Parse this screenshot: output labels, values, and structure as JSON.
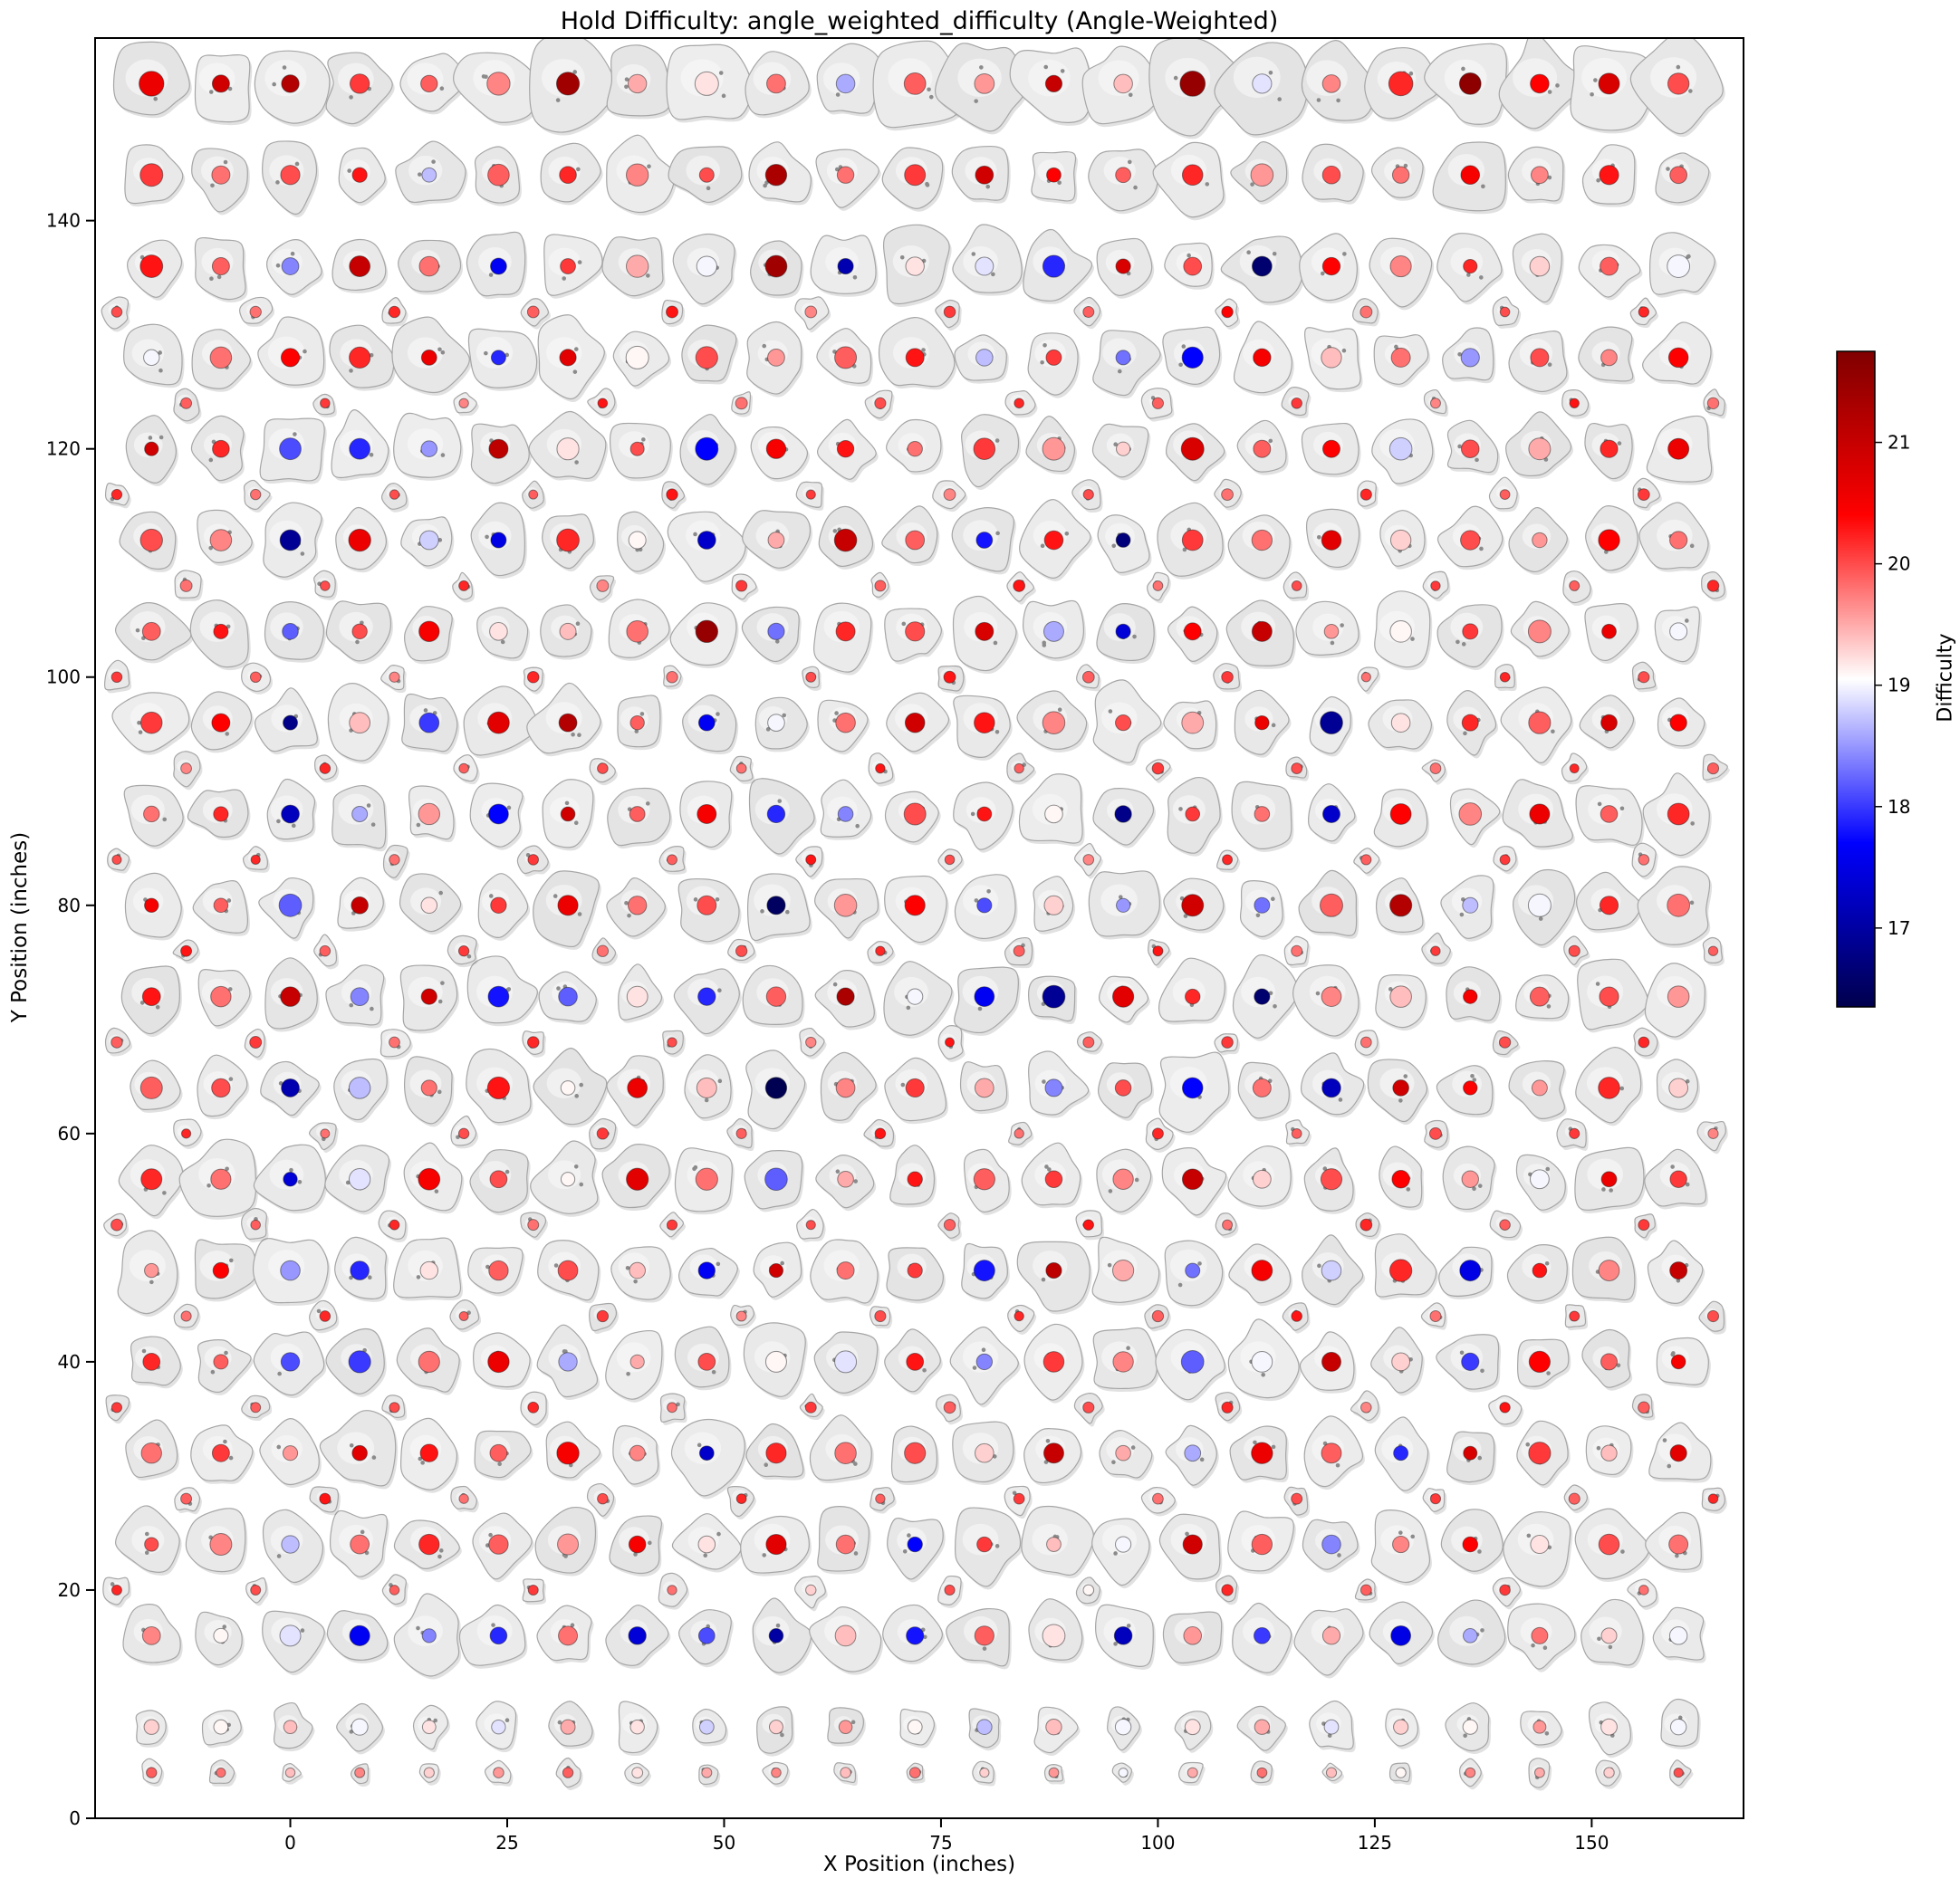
{
  "chart_data": {
    "type": "scatter",
    "title": "Hold Difficulty: angle_weighted_difficulty (Angle-Weighted)",
    "xlabel": "X Position (inches)",
    "ylabel": "Y Position (inches)",
    "xlim": [
      -22.5,
      167.5
    ],
    "ylim": [
      0,
      156
    ],
    "xticks": [
      0,
      25,
      50,
      75,
      100,
      125,
      150
    ],
    "yticks": [
      0,
      20,
      40,
      60,
      80,
      100,
      120,
      140
    ],
    "grid": false,
    "legend": "none",
    "marker_description": "gray climbing-hold silhouettes with difficulty-colored center dots",
    "colorbar": {
      "label": "Difficulty",
      "ticks": [
        17,
        18,
        19,
        20,
        21
      ],
      "vmin": 16.35,
      "vmax": 21.75,
      "colormap": "seismic",
      "position": "right"
    },
    "hold_rows": [
      {
        "y": 152,
        "x0": -16,
        "dx": 8,
        "size": "large",
        "difficulty": [
          20.6,
          20.9,
          21.2,
          20.1,
          19.9,
          19.7,
          21.4,
          19.5,
          19.2,
          19.8,
          18.6,
          19.9,
          19.6,
          21.0,
          19.4,
          21.5,
          18.9,
          19.7,
          20.2,
          21.6,
          20.4,
          20.8,
          20.0
        ]
      },
      {
        "y": 144,
        "x0": -16,
        "dx": 8,
        "size": "main",
        "difficulty": [
          20.1,
          19.8,
          20.0,
          20.3,
          18.7,
          19.9,
          20.2,
          19.7,
          20.0,
          21.3,
          19.8,
          20.1,
          20.9,
          20.4,
          19.9,
          20.2,
          19.6,
          20.0,
          19.8,
          20.5,
          19.7,
          20.3,
          19.9
        ]
      },
      {
        "y": 136,
        "x0": -16,
        "dx": 8,
        "size": "main",
        "difficulty": [
          20.3,
          19.9,
          18.4,
          21.0,
          19.8,
          17.6,
          20.1,
          19.5,
          19.0,
          21.4,
          17.1,
          19.2,
          18.9,
          17.9,
          20.8,
          20.0,
          16.6,
          20.4,
          19.7,
          20.2,
          19.3,
          19.9,
          19.0
        ]
      },
      {
        "y": 128,
        "x0": -16,
        "dx": 8,
        "size": "main",
        "difficulty": [
          19.0,
          19.8,
          20.4,
          20.2,
          20.6,
          17.9,
          20.7,
          19.1,
          20.0,
          19.6,
          19.9,
          20.3,
          18.7,
          20.1,
          18.3,
          17.7,
          20.5,
          19.4,
          19.8,
          18.5,
          20.0,
          19.7,
          20.4
        ]
      },
      {
        "y": 120,
        "x0": -16,
        "dx": 8,
        "size": "main",
        "difficulty": [
          20.9,
          20.2,
          18.1,
          17.9,
          18.5,
          21.1,
          19.2,
          20.0,
          17.7,
          20.5,
          20.3,
          19.8,
          20.1,
          19.6,
          19.3,
          20.8,
          19.9,
          20.4,
          18.8,
          20.0,
          19.5,
          20.2,
          20.6
        ]
      },
      {
        "y": 112,
        "x0": -16,
        "dx": 8,
        "size": "main",
        "difficulty": [
          20.0,
          19.7,
          16.9,
          20.6,
          18.8,
          17.5,
          20.2,
          19.1,
          17.3,
          19.5,
          21.0,
          19.9,
          17.8,
          20.3,
          16.7,
          20.1,
          19.8,
          20.7,
          19.3,
          20.0,
          19.6,
          20.4,
          19.8
        ]
      },
      {
        "y": 104,
        "x0": -16,
        "dx": 8,
        "size": "main",
        "difficulty": [
          19.9,
          20.3,
          18.2,
          20.0,
          20.5,
          19.2,
          19.4,
          19.8,
          21.5,
          18.3,
          20.2,
          20.0,
          20.8,
          18.6,
          17.4,
          20.4,
          21.0,
          19.6,
          19.1,
          20.1,
          19.7,
          20.6,
          19.0
        ]
      },
      {
        "y": 96,
        "x0": -16,
        "dx": 8,
        "size": "main",
        "difficulty": [
          20.1,
          20.4,
          16.8,
          19.4,
          18.0,
          20.7,
          21.2,
          19.9,
          17.6,
          19.0,
          19.8,
          20.9,
          20.3,
          19.7,
          20.0,
          19.5,
          20.6,
          16.9,
          19.2,
          20.2,
          19.9,
          20.8,
          20.4
        ]
      },
      {
        "y": 88,
        "x0": -16,
        "dx": 8,
        "size": "main",
        "difficulty": [
          19.8,
          20.2,
          17.2,
          18.6,
          19.6,
          17.7,
          20.9,
          19.9,
          20.5,
          17.9,
          18.4,
          20.0,
          20.3,
          19.1,
          16.8,
          20.1,
          19.8,
          17.3,
          20.4,
          19.7,
          20.6,
          19.9,
          20.2
        ]
      },
      {
        "y": 80,
        "x0": -16,
        "dx": 8,
        "size": "main",
        "difficulty": [
          20.5,
          19.9,
          18.2,
          21.0,
          19.2,
          20.1,
          20.6,
          19.8,
          20.0,
          16.5,
          19.6,
          20.4,
          18.1,
          19.3,
          18.5,
          20.9,
          18.3,
          19.9,
          21.2,
          18.7,
          19.0,
          20.2,
          19.8
        ]
      },
      {
        "y": 72,
        "x0": -16,
        "dx": 8,
        "size": "main",
        "difficulty": [
          20.3,
          19.8,
          21.0,
          18.4,
          20.9,
          17.8,
          18.2,
          19.2,
          17.9,
          19.9,
          21.3,
          19.0,
          17.6,
          16.9,
          20.7,
          20.2,
          16.6,
          19.7,
          19.4,
          20.5,
          19.9,
          20.0,
          19.6
        ]
      },
      {
        "y": 64,
        "x0": -16,
        "dx": 8,
        "size": "main",
        "difficulty": [
          19.9,
          20.0,
          17.1,
          18.7,
          19.8,
          20.3,
          19.1,
          20.6,
          19.4,
          16.4,
          19.7,
          20.1,
          19.5,
          18.4,
          20.0,
          17.7,
          19.8,
          17.2,
          20.9,
          20.4,
          19.6,
          20.2,
          19.3
        ]
      },
      {
        "y": 56,
        "x0": -16,
        "dx": 8,
        "size": "main",
        "difficulty": [
          20.2,
          19.8,
          17.4,
          18.9,
          20.5,
          20.0,
          19.1,
          20.7,
          19.8,
          18.2,
          19.5,
          20.3,
          19.9,
          20.1,
          19.7,
          21.0,
          19.3,
          20.0,
          20.4,
          19.6,
          19.0,
          20.6,
          20.1
        ]
      },
      {
        "y": 48,
        "x0": -16,
        "dx": 8,
        "size": "main",
        "difficulty": [
          19.6,
          20.4,
          18.5,
          17.9,
          19.2,
          19.9,
          20.0,
          19.4,
          17.6,
          20.9,
          19.8,
          20.1,
          17.8,
          21.1,
          19.5,
          18.3,
          20.5,
          18.8,
          20.2,
          17.5,
          20.3,
          19.7,
          21.0
        ]
      },
      {
        "y": 40,
        "x0": -16,
        "dx": 8,
        "size": "main",
        "difficulty": [
          20.2,
          19.9,
          18.1,
          18.0,
          19.8,
          20.6,
          18.6,
          19.5,
          20.0,
          19.1,
          18.9,
          20.3,
          18.4,
          20.1,
          19.7,
          18.2,
          19.0,
          21.0,
          19.3,
          18.0,
          20.4,
          19.9,
          20.5
        ]
      },
      {
        "y": 32,
        "x0": -16,
        "dx": 8,
        "size": "main",
        "difficulty": [
          19.8,
          20.1,
          19.6,
          20.7,
          20.3,
          19.9,
          20.5,
          19.7,
          17.3,
          20.2,
          19.8,
          20.0,
          19.3,
          21.0,
          19.5,
          18.6,
          20.6,
          19.9,
          17.9,
          20.8,
          20.1,
          19.4,
          20.7
        ]
      },
      {
        "y": 24,
        "x0": -16,
        "dx": 8,
        "size": "main",
        "difficulty": [
          20.0,
          19.7,
          18.7,
          19.8,
          20.2,
          19.9,
          19.6,
          20.5,
          19.2,
          20.7,
          19.8,
          17.7,
          20.1,
          19.4,
          19.0,
          20.9,
          19.9,
          18.4,
          19.7,
          20.4,
          19.2,
          20.0,
          19.8
        ]
      },
      {
        "y": 16,
        "x0": -16,
        "dx": 8,
        "size": "main",
        "difficulty": [
          19.7,
          19.1,
          18.9,
          17.6,
          18.4,
          17.9,
          19.8,
          17.4,
          18.1,
          17.0,
          19.4,
          17.8,
          19.9,
          19.2,
          17.2,
          19.6,
          18.0,
          19.5,
          17.5,
          18.6,
          19.8,
          19.3,
          19.0
        ]
      },
      {
        "y": 8,
        "x0": -16,
        "dx": 8,
        "size": "kick",
        "difficulty": [
          19.3,
          19.1,
          19.4,
          19.0,
          19.2,
          18.9,
          19.5,
          19.2,
          18.8,
          19.3,
          19.6,
          19.1,
          18.7,
          19.4,
          19.0,
          19.2,
          19.5,
          18.9,
          19.3,
          19.1,
          19.6,
          19.2,
          19.0
        ]
      },
      {
        "y": 4,
        "x0": -16,
        "dx": 8,
        "size": "tiny",
        "difficulty": [
          19.9,
          19.8,
          19.4,
          19.7,
          19.3,
          19.6,
          19.9,
          19.2,
          19.5,
          19.7,
          19.4,
          19.8,
          19.3,
          19.6,
          19.0,
          19.5,
          19.8,
          19.4,
          19.1,
          19.7,
          19.5,
          19.3,
          20.0
        ]
      }
    ],
    "foot_rows": [
      {
        "y": 132,
        "x0": -20,
        "dx": 16,
        "difficulty": [
          20.0,
          19.8,
          20.2,
          19.9,
          20.3,
          19.7,
          20.1,
          19.9,
          20.4,
          19.8,
          20.0,
          20.2
        ]
      },
      {
        "y": 124,
        "x0": -12,
        "dx": 16,
        "difficulty": [
          19.9,
          20.1,
          19.7,
          20.3,
          19.8,
          20.0,
          20.2,
          19.9,
          20.1,
          19.7,
          20.3,
          19.8
        ]
      },
      {
        "y": 116,
        "x0": -20,
        "dx": 16,
        "difficulty": [
          20.2,
          19.8,
          20.0,
          19.9,
          20.3,
          20.1,
          19.7,
          20.0,
          19.8,
          20.2,
          19.9,
          20.1
        ]
      },
      {
        "y": 108,
        "x0": -12,
        "dx": 16,
        "difficulty": [
          19.8,
          20.0,
          20.2,
          19.7,
          20.1,
          19.9,
          20.3,
          19.8,
          20.0,
          20.1,
          19.9,
          20.2
        ]
      },
      {
        "y": 100,
        "x0": -20,
        "dx": 16,
        "difficulty": [
          20.1,
          19.9,
          19.7,
          20.2,
          19.8,
          20.0,
          20.3,
          19.9,
          20.1,
          19.8,
          20.2,
          20.0
        ]
      },
      {
        "y": 92,
        "x0": -12,
        "dx": 16,
        "difficulty": [
          19.7,
          20.2,
          19.9,
          20.0,
          19.8,
          20.3,
          19.9,
          20.1,
          20.0,
          19.8,
          20.2,
          19.9
        ]
      },
      {
        "y": 84,
        "x0": -20,
        "dx": 16,
        "difficulty": [
          20.0,
          20.2,
          19.8,
          20.1,
          19.9,
          20.3,
          20.0,
          19.7,
          20.2,
          19.9,
          20.1,
          19.8
        ]
      },
      {
        "y": 76,
        "x0": -12,
        "dx": 16,
        "difficulty": [
          20.3,
          19.9,
          20.1,
          19.8,
          20.0,
          20.2,
          19.9,
          20.3,
          19.8,
          20.1,
          20.0,
          19.9
        ]
      },
      {
        "y": 68,
        "x0": -20,
        "dx": 16,
        "difficulty": [
          19.9,
          20.1,
          19.8,
          20.2,
          20.0,
          19.7,
          20.3,
          19.9,
          20.1,
          19.8,
          20.0,
          20.2
        ]
      },
      {
        "y": 60,
        "x0": -12,
        "dx": 16,
        "difficulty": [
          20.2,
          19.8,
          20.0,
          20.1,
          19.9,
          20.3,
          19.8,
          20.2,
          19.9,
          20.0,
          20.1,
          19.7
        ]
      },
      {
        "y": 52,
        "x0": -20,
        "dx": 16,
        "difficulty": [
          20.0,
          19.9,
          20.2,
          19.8,
          20.1,
          20.0,
          19.9,
          20.3,
          19.8,
          20.2,
          19.9,
          20.1
        ]
      },
      {
        "y": 44,
        "x0": -12,
        "dx": 16,
        "difficulty": [
          19.8,
          20.2,
          19.9,
          20.1,
          19.7,
          20.0,
          20.2,
          19.9,
          20.3,
          19.8,
          20.1,
          20.0
        ]
      },
      {
        "y": 36,
        "x0": -20,
        "dx": 16,
        "difficulty": [
          20.1,
          19.9,
          20.0,
          20.2,
          19.8,
          20.1,
          19.9,
          20.0,
          20.2,
          19.7,
          20.3,
          19.9
        ]
      },
      {
        "y": 28,
        "x0": -12,
        "dx": 16,
        "difficulty": [
          19.9,
          20.3,
          19.8,
          20.0,
          20.2,
          19.9,
          20.1,
          19.8,
          20.0,
          20.1,
          19.9,
          20.2
        ]
      },
      {
        "y": 20,
        "x0": -20,
        "dx": 16,
        "difficulty": [
          20.2,
          20.0,
          19.9,
          20.1,
          19.8,
          19.3,
          20.0,
          19.1,
          20.2,
          19.9,
          20.1,
          19.8
        ]
      }
    ]
  }
}
